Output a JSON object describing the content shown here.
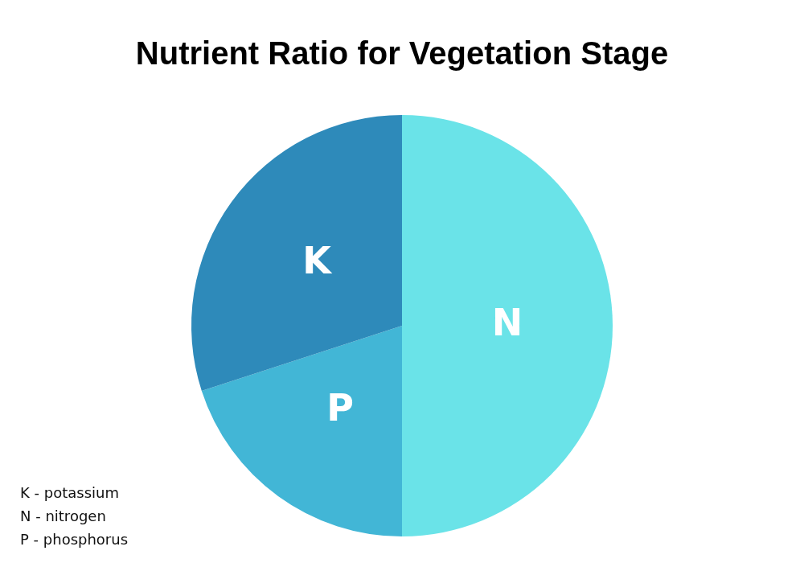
{
  "chart_data": {
    "type": "pie",
    "title": "Nutrient Ratio for Vegetation Stage",
    "categories": [
      "N",
      "P",
      "K"
    ],
    "values": [
      50,
      20,
      30
    ],
    "colors": [
      "#6ae3e8",
      "#42b6d6",
      "#2e8aba"
    ],
    "annotations": [
      "K - potassium",
      "N - nitrogen",
      "P - phosphorus"
    ]
  }
}
